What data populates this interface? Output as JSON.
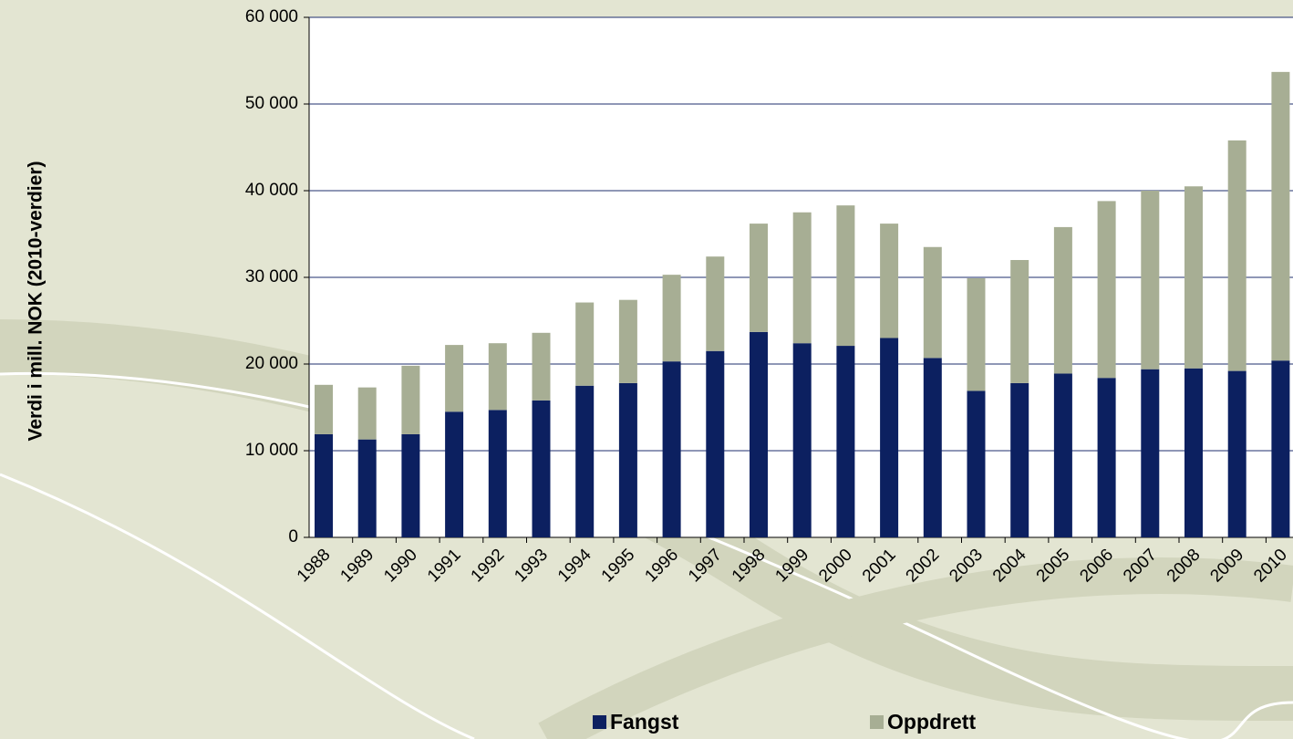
{
  "chart_data": {
    "type": "stacked-bar",
    "y_axis_label": "Verdi i mill. NOK (2010-verdier)",
    "categories": [
      "1988",
      "1989",
      "1990",
      "1991",
      "1992",
      "1993",
      "1994",
      "1995",
      "1996",
      "1997",
      "1998",
      "1999",
      "2000",
      "2001",
      "2002",
      "2003",
      "2004",
      "2005",
      "2006",
      "2007",
      "2008",
      "2009",
      "2010"
    ],
    "series": [
      {
        "name": "Fangst",
        "color": "#0c2060",
        "values": [
          11900,
          11300,
          11900,
          14500,
          14700,
          15800,
          17500,
          17800,
          20300,
          21500,
          23700,
          22400,
          22100,
          23000,
          20700,
          16900,
          17800,
          18900,
          18400,
          19400,
          19500,
          19200,
          20400
        ]
      },
      {
        "name": "Oppdrett",
        "color": "#a7ae94",
        "values": [
          5700,
          6000,
          7900,
          7700,
          7700,
          7800,
          9600,
          9600,
          10000,
          10900,
          12500,
          15100,
          16200,
          13200,
          12800,
          13000,
          14200,
          16900,
          20400,
          20600,
          21000,
          26600,
          33300
        ]
      }
    ],
    "ylim": [
      0,
      60000
    ],
    "yticks": [
      0,
      {
        "value": 10000,
        "label": "10 000"
      },
      {
        "value": 20000,
        "label": "20 000"
      },
      {
        "value": 30000,
        "label": "30 000"
      },
      {
        "value": 40000,
        "label": "40 000"
      },
      {
        "value": 50000,
        "label": "50 000"
      },
      {
        "value": 60000,
        "label": "60 000"
      }
    ],
    "grid": true
  }
}
